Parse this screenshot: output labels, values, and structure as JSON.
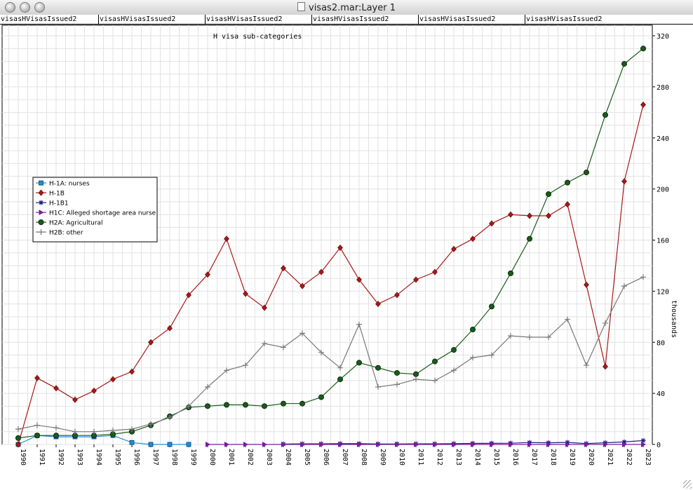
{
  "window": {
    "title": "visas2.mar:Layer 1"
  },
  "tabs": [
    "visasHVisasIssued2",
    "visasHVisasIssued2",
    "visasHVisasIssued2",
    "visasHVisasIssued2",
    "visasHVisasIssued2",
    "visasHVisasIssued2"
  ],
  "chart_data": {
    "type": "line",
    "title": "H visa sub-categories",
    "ylabel": "thousands",
    "xlabel": "",
    "ylim": [
      0,
      320
    ],
    "yticks": [
      0,
      40,
      80,
      120,
      160,
      200,
      240,
      280,
      320
    ],
    "grid": true,
    "legend": "left-middle",
    "x": [
      1990,
      1991,
      1992,
      1993,
      1994,
      1995,
      1996,
      1997,
      1998,
      1999,
      2000,
      2001,
      2002,
      2003,
      2004,
      2005,
      2006,
      2007,
      2008,
      2009,
      2010,
      2011,
      2012,
      2013,
      2014,
      2015,
      2016,
      2017,
      2018,
      2019,
      2020,
      2021,
      2022,
      2023
    ],
    "series": [
      {
        "name": "H-1A: nurses",
        "color": "#1f8fd6",
        "marker": "square",
        "values": [
          0,
          7,
          6,
          6,
          6,
          7,
          1.5,
          0,
          0,
          0,
          null,
          null,
          null,
          null,
          null,
          null,
          null,
          null,
          null,
          null,
          null,
          null,
          null,
          null,
          null,
          null,
          null,
          null,
          null,
          null,
          null,
          null,
          null,
          null
        ]
      },
      {
        "name": "H-1B",
        "color": "#a81818",
        "marker": "diamond",
        "values": [
          0,
          52,
          44,
          35,
          42,
          51,
          57,
          80,
          91,
          117,
          133,
          161,
          118,
          107,
          138,
          124,
          135,
          154,
          129,
          110,
          117,
          129,
          135,
          153,
          161,
          173,
          180,
          179,
          179,
          188,
          125,
          61,
          206,
          266
        ]
      },
      {
        "name": "H-1B1",
        "color": "#1c1c8c",
        "marker": "star",
        "values": [
          null,
          null,
          null,
          null,
          null,
          null,
          null,
          null,
          null,
          null,
          null,
          null,
          null,
          null,
          0.3,
          0.5,
          0.5,
          0.6,
          0.6,
          0.4,
          0.4,
          0.5,
          0.5,
          0.6,
          0.8,
          0.9,
          1,
          1.5,
          1.3,
          1.6,
          0.7,
          1.3,
          2,
          3
        ]
      },
      {
        "name": "H1C: Alleged shortage area nurse",
        "color": "#7a1a9a",
        "marker": "triangle",
        "values": [
          null,
          null,
          null,
          null,
          null,
          null,
          null,
          null,
          null,
          null,
          0,
          0,
          0,
          0,
          0,
          0,
          0,
          0,
          0,
          0,
          0,
          0,
          0,
          0,
          0,
          0,
          0,
          0,
          0,
          0,
          0,
          0,
          0,
          0
        ]
      },
      {
        "name": "H2A: Agricultural",
        "color": "#1a5a1a",
        "marker": "circle",
        "values": [
          5,
          7,
          7,
          7,
          7,
          8,
          10,
          15,
          22,
          29,
          30,
          31,
          31,
          30,
          32,
          32,
          37,
          51,
          64,
          60,
          56,
          55,
          65,
          74,
          90,
          108,
          134,
          161,
          196,
          205,
          213,
          258,
          298,
          310
        ]
      },
      {
        "name": "H2B: other",
        "color": "#777777",
        "marker": "plus",
        "values": [
          12,
          15,
          13,
          10,
          10,
          11,
          12,
          16,
          21,
          30,
          45,
          58,
          62,
          79,
          76,
          87,
          72,
          60,
          94,
          45,
          47,
          51,
          50,
          58,
          68,
          70,
          85,
          84,
          84,
          98,
          62,
          95,
          124,
          131
        ]
      }
    ]
  }
}
